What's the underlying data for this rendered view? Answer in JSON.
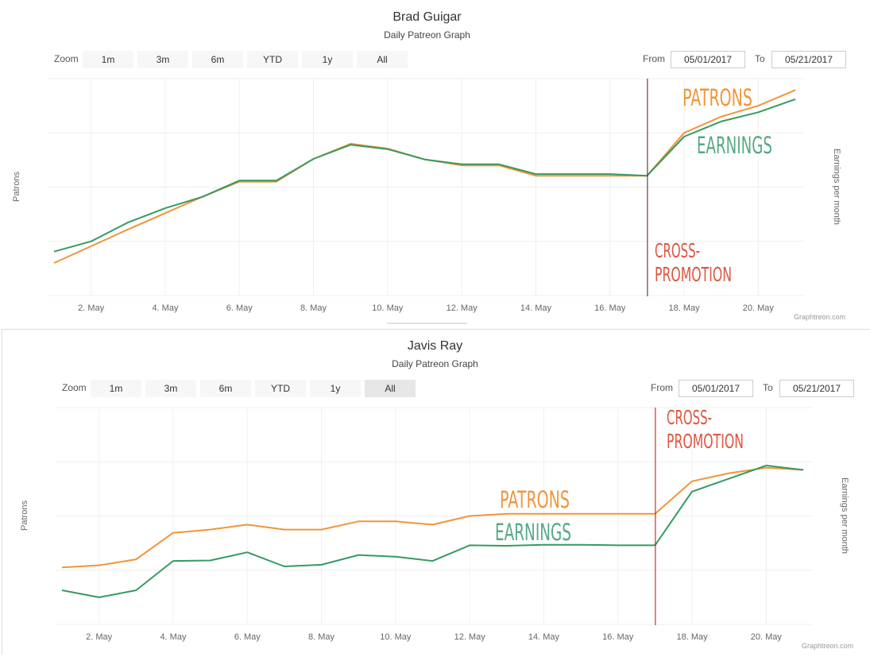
{
  "zoom_label": "Zoom",
  "zoom_buttons": [
    "1m",
    "3m",
    "6m",
    "YTD",
    "1y",
    "All"
  ],
  "from_label": "From",
  "to_label": "To",
  "credit": "Graphtreon.com",
  "colors": {
    "patrons": "#f0953a",
    "earnings": "#369a62",
    "patrons_annotation": "#f0953a",
    "earnings_annotation": "#55a983",
    "cross_promotion": "#dd5540",
    "cross_line": "#cc0000"
  },
  "charts": [
    {
      "title": "Brad Guigar",
      "subtitle": "Daily Patreon Graph",
      "from": "05/01/2017",
      "to": "05/21/2017",
      "active_zoom": "",
      "chart_data": {
        "type": "line",
        "title": "Brad Guigar",
        "subtitle": "Daily Patreon Graph",
        "ylabel": "Patrons",
        "ylabel_right": "Earnings per month",
        "x": [
          "1 May",
          "2 May",
          "3 May",
          "4 May",
          "5 May",
          "6 May",
          "7 May",
          "8 May",
          "9 May",
          "10 May",
          "11 May",
          "12 May",
          "13 May",
          "14 May",
          "15 May",
          "16 May",
          "17 May",
          "18 May",
          "19 May",
          "20 May",
          "21 May"
        ],
        "xtick_labels": [
          "2. May",
          "4. May",
          "6. May",
          "8. May",
          "10. May",
          "12. May",
          "14. May",
          "16. May",
          "18. May",
          "20. May"
        ],
        "ylim": [
          0,
          4
        ],
        "y_ticks_printed": false,
        "grid": true,
        "series": [
          {
            "key": "patrons",
            "values": [
              0.6,
              0.91,
              1.22,
              1.52,
              1.82,
              2.1,
              2.1,
              2.52,
              2.8,
              2.71,
              2.51,
              2.4,
              2.4,
              2.21,
              2.21,
              2.21,
              2.21,
              3.0,
              3.3,
              3.5,
              3.79
            ]
          },
          {
            "key": "earnings",
            "values": [
              0.81,
              1.0,
              1.35,
              1.61,
              1.82,
              2.12,
              2.12,
              2.52,
              2.78,
              2.7,
              2.51,
              2.42,
              2.42,
              2.24,
              2.24,
              2.24,
              2.21,
              2.93,
              3.21,
              3.38,
              3.62
            ]
          }
        ],
        "event_line": {
          "x": "17 May"
        },
        "annotations": {
          "patrons": "PATRONS",
          "earnings": "EARNINGS",
          "cross_1": "CROSS-",
          "cross_2": "PROMOTION"
        }
      }
    },
    {
      "title": "Javis Ray",
      "subtitle": "Daily Patreon Graph",
      "from": "05/01/2017",
      "to": "05/21/2017",
      "active_zoom": "All",
      "chart_data": {
        "type": "line",
        "title": "Javis Ray",
        "subtitle": "Daily Patreon Graph",
        "ylabel": "Patrons",
        "ylabel_right": "Earnings per month",
        "x": [
          "1 May",
          "2 May",
          "3 May",
          "4 May",
          "5 May",
          "6 May",
          "7 May",
          "8 May",
          "9 May",
          "10 May",
          "11 May",
          "12 May",
          "13 May",
          "14 May",
          "15 May",
          "16 May",
          "17 May",
          "18 May",
          "19 May",
          "20 May",
          "21 May"
        ],
        "xtick_labels": [
          "2. May",
          "4. May",
          "6. May",
          "8. May",
          "10. May",
          "12. May",
          "14. May",
          "16. May",
          "18. May",
          "20. May"
        ],
        "ylim": [
          0,
          4
        ],
        "y_ticks_printed": false,
        "grid": true,
        "series": [
          {
            "key": "patrons",
            "values": [
              1.05,
              1.09,
              1.2,
              1.69,
              1.75,
              1.84,
              1.75,
              1.75,
              1.9,
              1.9,
              1.84,
              2.0,
              2.04,
              2.04,
              2.04,
              2.04,
              2.04,
              2.64,
              2.79,
              2.89,
              2.85
            ]
          },
          {
            "key": "earnings",
            "values": [
              0.63,
              0.5,
              0.63,
              1.17,
              1.18,
              1.33,
              1.07,
              1.1,
              1.28,
              1.25,
              1.17,
              1.46,
              1.45,
              1.47,
              1.47,
              1.46,
              1.46,
              2.45,
              2.69,
              2.93,
              2.85
            ]
          }
        ],
        "event_line": {
          "x": "17 May"
        },
        "annotations": {
          "patrons": "PATRONS",
          "earnings": "EARNINGS",
          "cross_1": "CROSS-",
          "cross_2": "PROMOTION"
        }
      }
    }
  ]
}
